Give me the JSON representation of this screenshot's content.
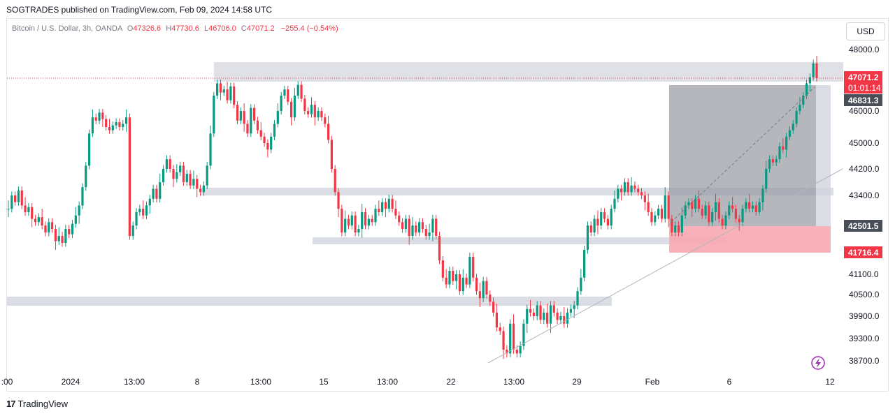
{
  "caption": "SOGTRADES published on TradingView.com, Feb 09, 2024 14:58 UTC",
  "legend": {
    "symbol": "Bitcoin / U.S. Dollar, 3h, OANDA",
    "o_label": "O",
    "o": "47326.6",
    "h_label": "H",
    "h": "47730.6",
    "l_label": "L",
    "l": "46706.0",
    "c_label": "C",
    "c": "47071.2",
    "change": "−255.4 (−0.54%)"
  },
  "currency_button": "USD",
  "footer": {
    "logo": "17",
    "brand": "TradingView"
  },
  "colors": {
    "up": "#089981",
    "down": "#f23645",
    "zone": "#d1d4dc",
    "stop": "#f7a9b0",
    "target": "#9598a1"
  },
  "chart_data": {
    "type": "candlestick",
    "y_ticks": [
      "48000.0",
      "46000.0",
      "45000.0",
      "44200.0",
      "43400.0",
      "41100.0",
      "40500.0",
      "39900.0",
      "39300.0",
      "38700.0"
    ],
    "x_ticks": [
      ":00",
      "2024",
      "13:00",
      "8",
      "13:00",
      "15",
      "13:00",
      "22",
      "13:00",
      "29",
      "Feb",
      "6",
      "12"
    ],
    "price_labels": [
      {
        "text": "47071.2",
        "sub": "01:01:14",
        "style": "current"
      },
      {
        "text": "46831.3",
        "style": "entry"
      },
      {
        "text": "42501.5",
        "style": "entry"
      },
      {
        "text": "41716.4",
        "style": "stop"
      }
    ],
    "series": [
      {
        "values": [
          43000,
          43400,
          43200,
          43550,
          43100,
          42900,
          43050,
          42700,
          42600,
          42750,
          42500,
          42300,
          42600,
          42400,
          42050,
          42200,
          42000,
          42400,
          42250,
          42550,
          42800,
          43100,
          43650,
          44300,
          45300,
          45800,
          45700,
          45950,
          45750,
          45500,
          45400,
          45550,
          45650,
          45500,
          45600,
          45800,
          42200,
          42500,
          42900,
          43000,
          42800,
          43100,
          43300,
          43600,
          43300,
          43800,
          44200,
          44500,
          44200,
          43900,
          44100,
          44300,
          43800,
          44050,
          43700,
          43900,
          43600,
          43500,
          43700,
          44300,
          45300,
          46500,
          46900,
          46600,
          46700,
          46350,
          46800,
          46200,
          45700,
          46000,
          45600,
          45300,
          46100,
          45700,
          45400,
          45200,
          45000,
          44800,
          45200,
          45600,
          46000,
          46500,
          46700,
          46300,
          45800,
          46500,
          46850,
          46400,
          46000,
          45900,
          46200,
          45800,
          46000,
          45800,
          45600,
          45100,
          44200,
          43500,
          43000,
          42300,
          42700,
          42500,
          42800,
          42300,
          42400,
          42900,
          42500,
          42700,
          42600,
          43000,
          42900,
          43200,
          43000,
          43300,
          43000,
          42800,
          42600,
          42400,
          42700,
          42200,
          42500,
          42300,
          42600,
          42400,
          42200,
          42300,
          42700,
          42200,
          41500,
          41000,
          40800,
          41200,
          40900,
          41100,
          40600,
          41000,
          40800,
          41600,
          41000,
          40600,
          40400,
          40900,
          40500,
          40300,
          40000,
          39600,
          39500,
          39000,
          38900,
          39700,
          39000,
          38900,
          39100,
          39700,
          40100,
          40000,
          39900,
          40200,
          39800,
          40000,
          39700,
          40200,
          40000,
          39800,
          39900,
          39700,
          40000,
          40100,
          40200,
          40600,
          41000,
          41800,
          42500,
          42300,
          42700,
          42500,
          42900,
          42700,
          42500,
          43000,
          43300,
          43600,
          43500,
          43800,
          43500,
          43700,
          43600,
          43500,
          43400,
          43200,
          42900,
          42600,
          42800,
          43000,
          42700,
          43400,
          42700,
          42300,
          42500,
          42300,
          42800,
          43100,
          43200,
          43000,
          43300,
          43000,
          42800,
          43100,
          42600,
          42900,
          43200,
          42700,
          42500,
          42800,
          43100,
          43000,
          42700,
          42600,
          43000,
          43200,
          43000,
          43100,
          42900,
          43200,
          43600,
          44200,
          44500,
          44400,
          44500,
          44900,
          44800,
          45200,
          45400,
          45600,
          46000,
          46200,
          46500,
          46900,
          47100,
          47550,
          47071
        ]
      }
    ]
  }
}
